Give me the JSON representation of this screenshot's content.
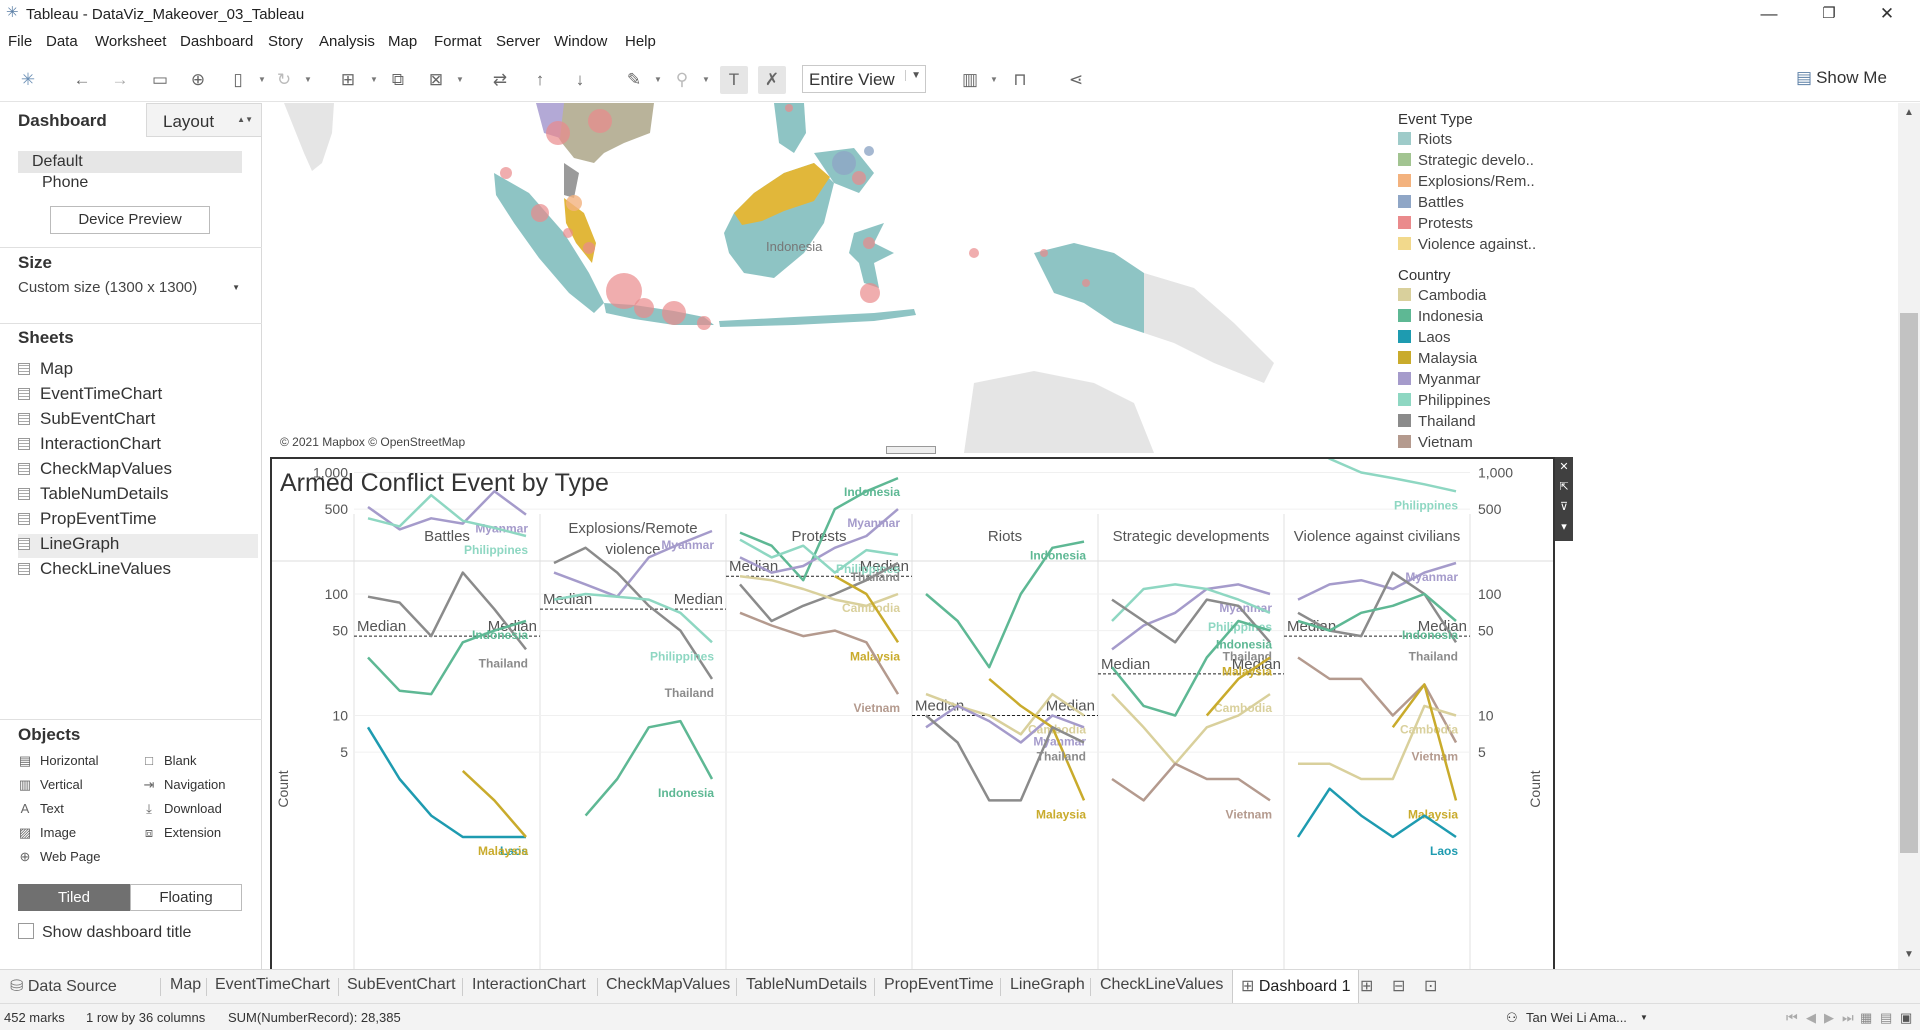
{
  "window": {
    "title": "Tableau - DataViz_Makeover_03_Tableau",
    "minimize": "—",
    "restore": "❐",
    "close": "✕"
  },
  "menu": [
    "File",
    "Data",
    "Worksheet",
    "Dashboard",
    "Story",
    "Analysis",
    "Map",
    "Format",
    "Server",
    "Window",
    "Help"
  ],
  "toolbar": {
    "fit_value": "Entire View",
    "show_me": "Show Me"
  },
  "left_panel": {
    "tab_dashboard": "Dashboard",
    "tab_layout": "Layout",
    "device_default": "Default",
    "device_phone": "Phone",
    "device_preview": "Device Preview",
    "size_title": "Size",
    "size_value": "Custom size (1300 x 1300)",
    "sheets_title": "Sheets",
    "sheets": [
      "Map",
      "EventTimeChart",
      "SubEventChart",
      "InteractionChart",
      "CheckMapValues",
      "TableNumDetails",
      "PropEventTime",
      "LineGraph",
      "CheckLineValues"
    ],
    "objects_title": "Objects",
    "objects": {
      "horizontal": "Horizontal",
      "blank": "Blank",
      "vertical": "Vertical",
      "navigation": "Navigation",
      "text": "Text",
      "download": "Download",
      "image": "Image",
      "extension": "Extension",
      "web_page": "Web Page"
    },
    "tiled": "Tiled",
    "floating": "Floating",
    "show_title": "Show dashboard title"
  },
  "map": {
    "credit": "© 2021 Mapbox © OpenStreetMap",
    "label": "Indonesia"
  },
  "legend": {
    "event_type_title": "Event Type",
    "event_types": [
      {
        "label": "Riots",
        "color": "#9ecbc9"
      },
      {
        "label": "Strategic develo..",
        "color": "#a2c491"
      },
      {
        "label": "Explosions/Rem..",
        "color": "#f3b27e"
      },
      {
        "label": "Battles",
        "color": "#8fa6c6"
      },
      {
        "label": "Protests",
        "color": "#ea8a8c"
      },
      {
        "label": "Violence against..",
        "color": "#f2d98c"
      }
    ],
    "country_title": "Country",
    "countries": [
      {
        "label": "Cambodia",
        "color": "#d9d09c"
      },
      {
        "label": "Indonesia",
        "color": "#5eb894"
      },
      {
        "label": "Laos",
        "color": "#1e9bb0"
      },
      {
        "label": "Malaysia",
        "color": "#c9ab2c"
      },
      {
        "label": "Myanmar",
        "color": "#a59bcb"
      },
      {
        "label": "Philippines",
        "color": "#8ed7c2"
      },
      {
        "label": "Thailand",
        "color": "#8b8b8b"
      },
      {
        "label": "Vietnam",
        "color": "#b49a8e"
      }
    ]
  },
  "chart": {
    "title": "Armed Conflict Event by Type",
    "panels": [
      "Battles",
      "Explosions/Remote\nviolence",
      "Protests",
      "Riots",
      "Strategic developments",
      "Violence against civilians"
    ],
    "y_axis_label": "Count",
    "y_ticks": [
      "1,000",
      "500",
      "100",
      "50",
      "10",
      "5"
    ],
    "median_label": "Median"
  },
  "chart_data": {
    "type": "line",
    "title": "Armed Conflict Event by Type",
    "ylabel": "Count",
    "yscale": "log",
    "yticks": [
      5,
      10,
      50,
      100,
      500,
      1000
    ],
    "panels": [
      {
        "name": "Battles",
        "median": 45,
        "series": [
          {
            "name": "Myanmar",
            "values": [
              520,
              340,
              420,
              380,
              700,
              450
            ]
          },
          {
            "name": "Philippines",
            "values": [
              420,
              360,
              650,
              400,
              350,
              300
            ]
          },
          {
            "name": "Thailand",
            "values": [
              95,
              85,
              45,
              150,
              75,
              35
            ]
          },
          {
            "name": "Indonesia",
            "values": [
              30,
              16,
              15,
              40,
              50,
              60
            ]
          },
          {
            "name": "Laos",
            "values": [
              8,
              3,
              1.5,
              1,
              1,
              1
            ]
          },
          {
            "name": "Malaysia",
            "values": [
              null,
              null,
              null,
              3.5,
              2,
              1
            ]
          }
        ]
      },
      {
        "name": "Explosions/Remote violence",
        "median": 75,
        "series": [
          {
            "name": "Myanmar",
            "values": [
              150,
              120,
              95,
              200,
              260,
              330
            ]
          },
          {
            "name": "Thailand",
            "values": [
              180,
              240,
              150,
              80,
              50,
              20
            ]
          },
          {
            "name": "Philippines",
            "values": [
              90,
              100,
              95,
              90,
              70,
              40
            ]
          },
          {
            "name": "Indonesia",
            "values": [
              null,
              1.5,
              3,
              8,
              9,
              3
            ]
          }
        ]
      },
      {
        "name": "Protests",
        "median": 140,
        "series": [
          {
            "name": "Indonesia",
            "values": [
              320,
              250,
              130,
              500,
              700,
              900
            ]
          },
          {
            "name": "Myanmar",
            "values": [
              200,
              150,
              170,
              240,
              300,
              500
            ]
          },
          {
            "name": "Philippines",
            "values": [
              280,
              200,
              250,
              150,
              230,
              210
            ]
          },
          {
            "name": "Thailand",
            "values": [
              120,
              60,
              80,
              100,
              130,
              180
            ]
          },
          {
            "name": "Cambodia",
            "values": [
              140,
              130,
              110,
              90,
              80,
              100
            ]
          },
          {
            "name": "Malaysia",
            "values": [
              null,
              null,
              null,
              140,
              100,
              40
            ]
          },
          {
            "name": "Vietnam",
            "values": [
              70,
              55,
              45,
              50,
              40,
              15
            ]
          }
        ]
      },
      {
        "name": "Riots",
        "median": 10,
        "series": [
          {
            "name": "Indonesia",
            "values": [
              100,
              60,
              25,
              100,
              240,
              270
            ]
          },
          {
            "name": "Cambodia",
            "values": [
              15,
              12,
              10,
              7,
              15,
              10
            ]
          },
          {
            "name": "Myanmar",
            "values": [
              8,
              12,
              9,
              6,
              10,
              8
            ]
          },
          {
            "name": "Malaysia",
            "values": [
              null,
              null,
              20,
              12,
              8,
              2
            ]
          },
          {
            "name": "Thailand",
            "values": [
              10,
              6,
              2,
              2,
              8,
              6
            ]
          }
        ]
      },
      {
        "name": "Strategic developments",
        "median": 22,
        "series": [
          {
            "name": "Myanmar",
            "values": [
              35,
              55,
              70,
              110,
              120,
              100
            ]
          },
          {
            "name": "Philippines",
            "values": [
              60,
              110,
              120,
              110,
              90,
              70
            ]
          },
          {
            "name": "Thailand",
            "values": [
              90,
              60,
              40,
              90,
              80,
              40
            ]
          },
          {
            "name": "Indonesia",
            "values": [
              25,
              12,
              10,
              30,
              60,
              50
            ]
          },
          {
            "name": "Cambodia",
            "values": [
              15,
              8,
              4,
              8,
              10,
              15
            ]
          },
          {
            "name": "Malaysia",
            "values": [
              null,
              null,
              null,
              10,
              20,
              30
            ]
          },
          {
            "name": "Vietnam",
            "values": [
              3,
              2,
              4,
              3,
              3,
              2
            ]
          }
        ]
      },
      {
        "name": "Violence against civilians",
        "median": 45,
        "series": [
          {
            "name": "Philippines",
            "values": [
              1900,
              1300,
              1000,
              900,
              800,
              700
            ]
          },
          {
            "name": "Myanmar",
            "values": [
              90,
              120,
              130,
              110,
              150,
              180
            ]
          },
          {
            "name": "Thailand",
            "values": [
              70,
              50,
              45,
              150,
              100,
              40
            ]
          },
          {
            "name": "Indonesia",
            "values": [
              60,
              50,
              70,
              80,
              100,
              60
            ]
          },
          {
            "name": "Vietnam",
            "values": [
              30,
              20,
              20,
              10,
              18,
              6
            ]
          },
          {
            "name": "Cambodia",
            "values": [
              4,
              4,
              3,
              3,
              12,
              10
            ]
          },
          {
            "name": "Malaysia",
            "values": [
              null,
              null,
              null,
              8,
              18,
              2
            ]
          },
          {
            "name": "Laos",
            "values": [
              1,
              2.5,
              1.5,
              1,
              1.5,
              1
            ]
          }
        ]
      }
    ]
  },
  "bottom_tabs": {
    "data_source": "Data Source",
    "sheets": [
      "Map",
      "EventTimeChart",
      "SubEventChart",
      "InteractionChart",
      "CheckMapValues",
      "TableNumDetails",
      "PropEventTime",
      "LineGraph",
      "CheckLineValues"
    ],
    "active": "Dashboard 1"
  },
  "status": {
    "marks": "452 marks",
    "layout": "1 row by 36 columns",
    "sum": "SUM(NumberRecord): 28,385",
    "user": "Tan Wei Li Ama..."
  }
}
